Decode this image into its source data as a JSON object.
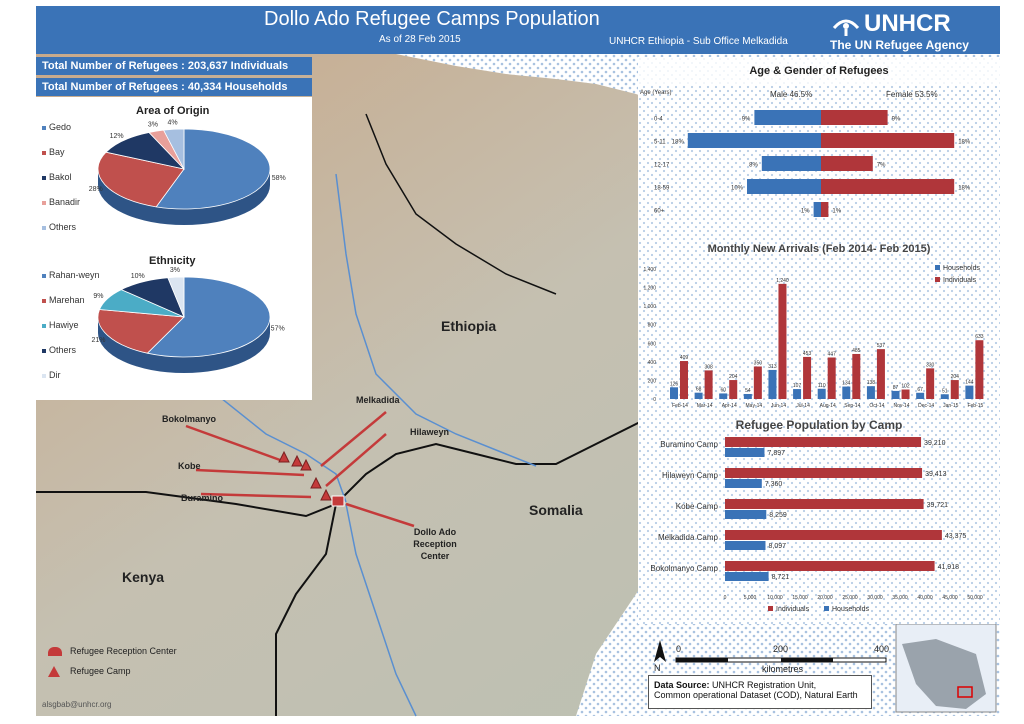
{
  "header": {
    "title": "Dollo Ado Refugee Camps Population",
    "date": "As of 28 Feb 2015",
    "office": "UNHCR  Ethiopia - Sub Office Melkadida",
    "logo_name": "UNHCR",
    "logo_tagline": "The UN Refugee Agency"
  },
  "stats": {
    "individuals": "Total Number of Refugees : 203,637 Individuals",
    "households": "Total Number of Refugees :  40,334 Households"
  },
  "origin": {
    "title": "Area of Origin",
    "items": [
      {
        "label": "Gedo",
        "value": 58,
        "text": "58%",
        "color": "#4f81bd"
      },
      {
        "label": "Bay",
        "value": 28,
        "text": "28%",
        "color": "#c0504d"
      },
      {
        "label": "Bakol",
        "value": 12,
        "text": "12%",
        "color": "#1f3864"
      },
      {
        "label": "Banadir",
        "value": 3,
        "text": "3%",
        "color": "#e8a09a"
      },
      {
        "label": "Others",
        "value": 4,
        "text": "4%",
        "color": "#a6bfe0"
      }
    ]
  },
  "ethnicity": {
    "title": "Ethnicity",
    "items": [
      {
        "label": "Rahan-weyn",
        "value": 57,
        "text": "57%",
        "color": "#4f81bd"
      },
      {
        "label": "Marehan",
        "value": 21,
        "text": "21%",
        "color": "#c0504d"
      },
      {
        "label": "Hawiye",
        "value": 9,
        "text": "9%",
        "color": "#4bacc6"
      },
      {
        "label": "Others",
        "value": 10,
        "text": "10%",
        "color": "#1f3864"
      },
      {
        "label": "Dir",
        "value": 3,
        "text": "3%",
        "color": "#dbe5f1"
      }
    ]
  },
  "chart_data": [
    {
      "type": "bar",
      "title": "Age & Gender of Refugees",
      "ylabel": "Age (Years)",
      "categories": [
        "0-4",
        "5-11",
        "12-17",
        "18-59",
        "60+"
      ],
      "series": [
        {
          "name": "Male 46.5%",
          "values": [
            9,
            18,
            8,
            10,
            1
          ],
          "labels": [
            "9%",
            "18%",
            "8%",
            "10%",
            "1%"
          ],
          "color": "#3a73b7"
        },
        {
          "name": "Female 53.5%",
          "values": [
            9,
            18,
            7,
            18,
            1
          ],
          "labels": [
            "9%",
            "18%",
            "7%",
            "18%",
            "1%"
          ],
          "color": "#b0363a"
        }
      ],
      "xlim": [
        -20,
        20
      ]
    },
    {
      "type": "bar",
      "title": "Monthly New Arrivals  (Feb 2014- Feb 2015)",
      "categories": [
        "Feb-14",
        "Mar-14",
        "Apr-14",
        "May-14",
        "Jun-14",
        "Jul-14",
        "Aug-14",
        "Sep-14",
        "Oct-14",
        "Nov-14",
        "Dec-14",
        "Jan-15",
        "Feb-15"
      ],
      "yticks": [
        "0",
        "200",
        "400",
        "600",
        "800",
        "1,000",
        "1,200",
        "1,400"
      ],
      "ylim": [
        0,
        1400
      ],
      "series": [
        {
          "name": "Households",
          "values": [
            126,
            68,
            60,
            54,
            313,
            107,
            110,
            134,
            138,
            87,
            67,
            51,
            144
          ],
          "color": "#3a73b7"
        },
        {
          "name": "Individuals",
          "values": [
            409,
            308,
            204,
            350,
            1240,
            453,
            447,
            485,
            537,
            102,
            330,
            204,
            633
          ],
          "color": "#b0363a"
        }
      ],
      "point_labels": {
        "Households": [
          "126",
          "68",
          "60",
          "54",
          "313",
          "107",
          "110",
          "134",
          "138",
          "87",
          "67",
          "51",
          "144"
        ],
        "Individuals": [
          "409",
          "308",
          "204",
          "350",
          "1,240",
          "453",
          "447",
          "485",
          "537",
          "102",
          "330",
          "204",
          "633"
        ]
      }
    },
    {
      "type": "bar",
      "title": "Refugee Population by Camp",
      "categories": [
        "Buramino Camp",
        "Hilaweyn Camp",
        "Kobe Camp",
        "Melkadida Camp",
        "Bokolmanyo Camp"
      ],
      "series": [
        {
          "name": "Individuals",
          "values": [
            39210,
            39413,
            39721,
            43375,
            41918
          ],
          "labels": [
            "39,210",
            "39,413",
            "39,721",
            "43,375",
            "41,918"
          ],
          "color": "#b0363a"
        },
        {
          "name": "Households",
          "values": [
            7897,
            7360,
            8259,
            8097,
            8721
          ],
          "labels": [
            "7,897",
            "7,360",
            "8,259",
            "8,097",
            "8,721"
          ],
          "color": "#3a73b7"
        }
      ],
      "xticks": [
        "0",
        "5,000",
        "10,000",
        "15,000",
        "20,000",
        "25,000",
        "30,000",
        "35,000",
        "40,000",
        "45,000",
        "50,000"
      ],
      "xlim": [
        0,
        50000
      ]
    }
  ],
  "map": {
    "countries": [
      "Ethiopia",
      "Somalia",
      "Kenya"
    ],
    "camps": [
      "Bokolmanyo",
      "Melkadida",
      "Hilaweyn",
      "Kobe",
      "Buramino",
      "Dollo Ado Reception Center"
    ],
    "legend": {
      "reception": "Refugee Reception Center",
      "camp": "Refugee Camp"
    },
    "scale": {
      "ticks": [
        "0",
        "200",
        "400"
      ],
      "unit": "kilometres"
    },
    "north": "N",
    "source_label": "Data Source:",
    "source_text": "UNHCR  Registration Unit,",
    "source_text2": "Common operational Dataset (COD),  Natural Earth",
    "email": "alsgbab@unhcr.org"
  }
}
